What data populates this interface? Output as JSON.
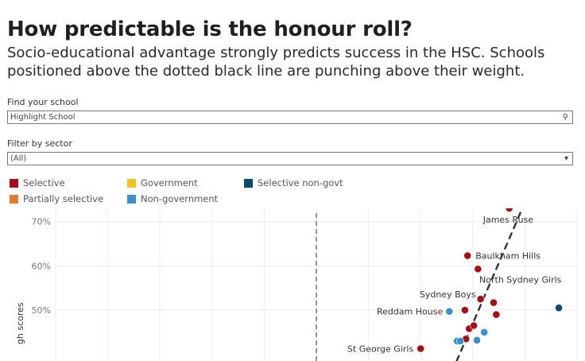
{
  "header": {
    "title": "How predictable is the honour roll?",
    "subtitle": "Socio-educational advantage strongly predicts success in the HSC. Schools positioned above the dotted black line are punching above their weight."
  },
  "controls": {
    "find_label": "Find your school",
    "find_value": "Highlight School",
    "filter_label": "Filter by sector",
    "filter_value": "(All)"
  },
  "colors": {
    "selective": "#a50f15",
    "partially_selective": "#e07b30",
    "government": "#f5c21b",
    "non_government": "#3a8fd1",
    "selective_non_govt": "#0a4a6e"
  },
  "legend": [
    {
      "label": "Selective",
      "color": "#a50f15"
    },
    {
      "label": "Government",
      "color": "#f5c21b"
    },
    {
      "label": "Selective non-govt",
      "color": "#0a4a6e"
    },
    {
      "label": "Partially selective",
      "color": "#e07b30"
    },
    {
      "label": "Non-government",
      "color": "#3a8fd1"
    }
  ],
  "chart_data": {
    "type": "scatter",
    "ylabel": "gh scores",
    "y_ticks": [
      "70%",
      "60%",
      "50%"
    ],
    "y_values": [
      70,
      60,
      50
    ],
    "ylim": [
      38.5,
      73
    ],
    "xlim": [
      0,
      100
    ],
    "grid": true,
    "vertical_reference_x": 50,
    "trend_line": {
      "style": "dashed",
      "points": [
        [
          76,
          36
        ],
        [
          89.5,
          73
        ]
      ]
    },
    "points": [
      {
        "x": 87.0,
        "y": 73.0,
        "sector": "selective",
        "label": "James Ruse"
      },
      {
        "x": 79.0,
        "y": 62.3,
        "sector": "selective",
        "label": "Baulkham Hills"
      },
      {
        "x": 81.0,
        "y": 59.3,
        "sector": "selective",
        "label": ""
      },
      {
        "x": 81.5,
        "y": 52.5,
        "sector": "selective",
        "label": "Sydney Boys"
      },
      {
        "x": 84.0,
        "y": 51.7,
        "sector": "selective",
        "label": "North Sydney Girls"
      },
      {
        "x": 78.5,
        "y": 50.0,
        "sector": "selective",
        "label": ""
      },
      {
        "x": 84.5,
        "y": 49.0,
        "sector": "selective",
        "label": ""
      },
      {
        "x": 75.5,
        "y": 49.7,
        "sector": "non_government",
        "label": "Reddam House"
      },
      {
        "x": 79.3,
        "y": 45.8,
        "sector": "selective",
        "label": ""
      },
      {
        "x": 80.2,
        "y": 46.5,
        "sector": "selective",
        "label": ""
      },
      {
        "x": 82.2,
        "y": 45.0,
        "sector": "non_government",
        "label": ""
      },
      {
        "x": 78.7,
        "y": 43.5,
        "sector": "selective",
        "label": ""
      },
      {
        "x": 77.0,
        "y": 43.0,
        "sector": "non_government",
        "label": ""
      },
      {
        "x": 77.6,
        "y": 43.0,
        "sector": "non_government",
        "label": ""
      },
      {
        "x": 80.8,
        "y": 43.2,
        "sector": "non_government",
        "label": ""
      },
      {
        "x": 70.0,
        "y": 41.3,
        "sector": "selective",
        "label": "St George Girls"
      },
      {
        "x": 96.5,
        "y": 50.5,
        "sector": "selective_non_govt",
        "label": ""
      }
    ]
  }
}
